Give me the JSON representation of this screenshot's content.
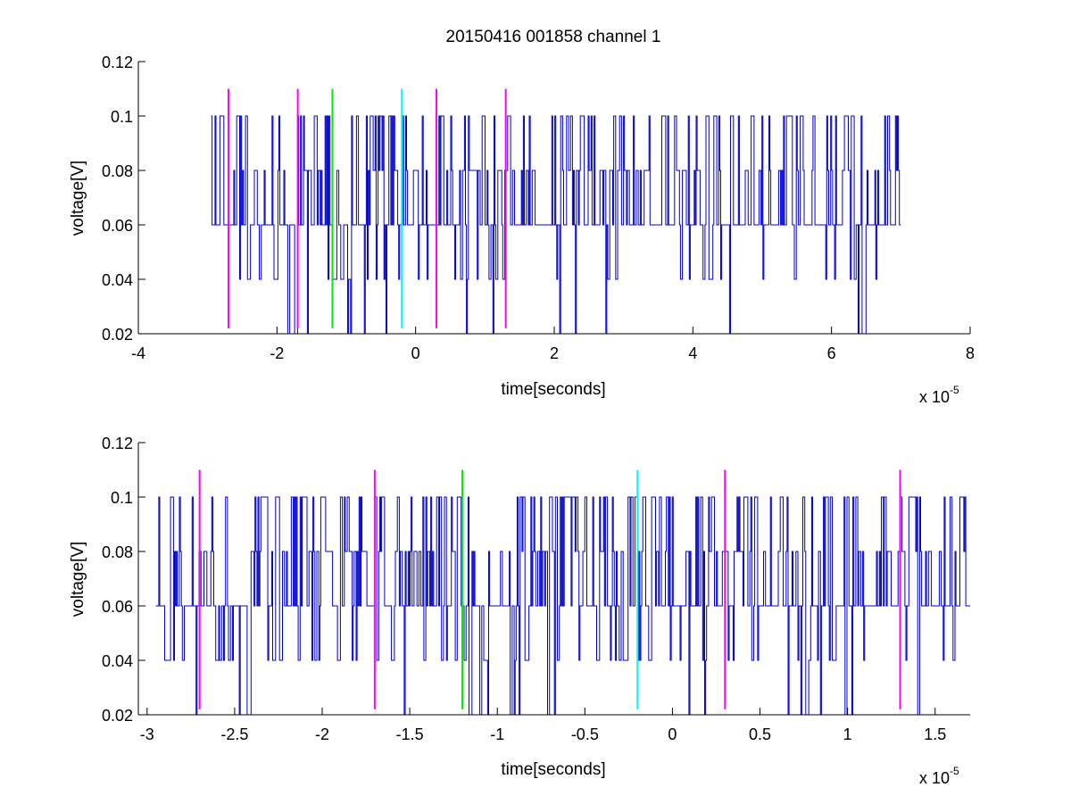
{
  "figure": {
    "title": "20150416 001858 channel 1"
  },
  "chart_data": [
    {
      "type": "line",
      "name": "top-panel",
      "title": "20150416 001858 channel 1",
      "xlabel": "time[seconds]",
      "ylabel": "voltage[V]",
      "x_multiplier_base": "x 10",
      "x_multiplier_exponent": "-5",
      "xlim": [
        -4,
        8
      ],
      "ylim": [
        0.02,
        0.12
      ],
      "x_ticks": [
        -4,
        -2,
        0,
        2,
        4,
        6,
        8
      ],
      "x_tick_labels": [
        "-4",
        "-2",
        "0",
        "2",
        "4",
        "6",
        "8"
      ],
      "y_ticks": [
        0.02,
        0.04,
        0.06,
        0.08,
        0.1,
        0.12
      ],
      "y_tick_labels": [
        "0.02",
        "0.04",
        "0.06",
        "0.08",
        "0.1",
        "0.12"
      ],
      "grid": false,
      "series": [
        {
          "color": "#0000cc",
          "x_range": [
            -2.95,
            7.0
          ],
          "levels": [
            0.02,
            0.04,
            0.06,
            0.08,
            0.1
          ],
          "baseline": 0.06
        }
      ],
      "markers": [
        {
          "x": -2.7,
          "y_range": [
            0.022,
            0.11
          ],
          "color": "#ff00ff"
        },
        {
          "x": -1.7,
          "y_range": [
            0.022,
            0.11
          ],
          "color": "#ff00ff"
        },
        {
          "x": -1.2,
          "y_range": [
            0.022,
            0.11
          ],
          "color": "#00ee00"
        },
        {
          "x": -0.2,
          "y_range": [
            0.022,
            0.11
          ],
          "color": "#00ffff"
        },
        {
          "x": 0.3,
          "y_range": [
            0.022,
            0.11
          ],
          "color": "#ff00ff"
        },
        {
          "x": 1.3,
          "y_range": [
            0.022,
            0.11
          ],
          "color": "#ff00ff"
        }
      ]
    },
    {
      "type": "line",
      "name": "bottom-panel",
      "xlabel": "time[seconds]",
      "ylabel": "voltage[V]",
      "x_multiplier_base": "x 10",
      "x_multiplier_exponent": "-5",
      "xlim": [
        -3.05,
        1.7
      ],
      "ylim": [
        0.02,
        0.12
      ],
      "x_ticks": [
        -3,
        -2.5,
        -2,
        -1.5,
        -1,
        -0.5,
        0,
        0.5,
        1,
        1.5
      ],
      "x_tick_labels": [
        "-3",
        "-2.5",
        "-2",
        "-1.5",
        "-1",
        "-0.5",
        "0",
        "0.5",
        "1",
        "1.5"
      ],
      "y_ticks": [
        0.02,
        0.04,
        0.06,
        0.08,
        0.1,
        0.12
      ],
      "y_tick_labels": [
        "0.02",
        "0.04",
        "0.06",
        "0.08",
        "0.1",
        "0.12"
      ],
      "grid": false,
      "series": [
        {
          "color": "#0000cc",
          "x_range": [
            -2.95,
            1.7
          ],
          "levels": [
            0.02,
            0.04,
            0.06,
            0.08,
            0.1
          ],
          "baseline": 0.06
        }
      ],
      "markers": [
        {
          "x": -2.7,
          "y_range": [
            0.022,
            0.11
          ],
          "color": "#ff00ff"
        },
        {
          "x": -1.7,
          "y_range": [
            0.022,
            0.11
          ],
          "color": "#ff00ff"
        },
        {
          "x": -1.2,
          "y_range": [
            0.022,
            0.11
          ],
          "color": "#00ee00"
        },
        {
          "x": -0.2,
          "y_range": [
            0.022,
            0.11
          ],
          "color": "#00ffff"
        },
        {
          "x": 0.3,
          "y_range": [
            0.022,
            0.11
          ],
          "color": "#ff00ff"
        },
        {
          "x": 1.3,
          "y_range": [
            0.022,
            0.11
          ],
          "color": "#ff00ff"
        }
      ]
    }
  ]
}
